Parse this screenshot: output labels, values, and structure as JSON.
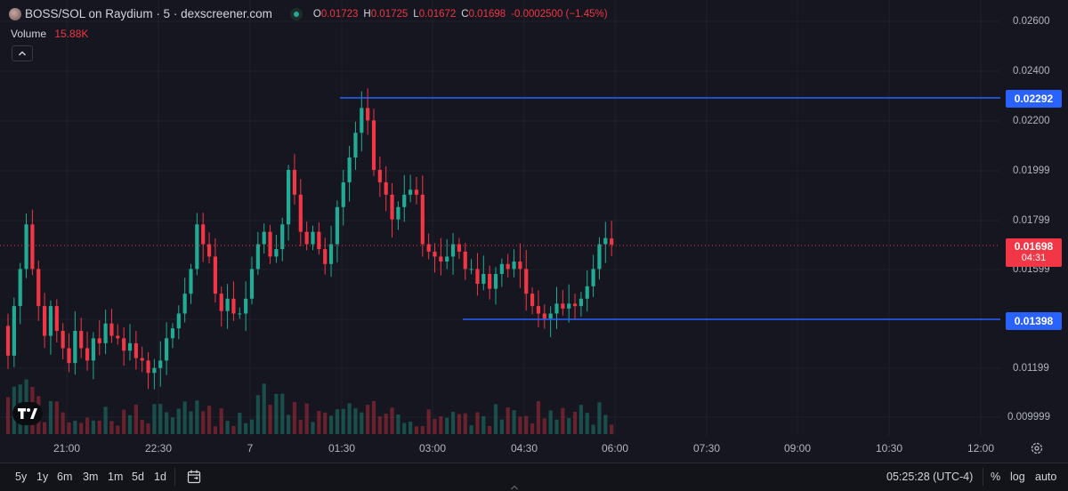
{
  "legend": {
    "title": "BOSS/SOL on Raydium · 5 · dexscreener.com",
    "open_label": "O",
    "open": "0.01723",
    "high_label": "H",
    "high": "0.01725",
    "low_label": "L",
    "low": "0.01672",
    "close_label": "C",
    "close": "0.01698",
    "change": "-0.0002500 (−1.45%)",
    "volume_label": "Volume",
    "volume_value": "15.88K",
    "status_color": "#22ab94"
  },
  "price_axis": {
    "labels": [
      "0.02600",
      "0.02400",
      "0.02200",
      "0.01999",
      "0.01799",
      "0.01599",
      "0.01199",
      "0.009999"
    ]
  },
  "horizontal_lines": {
    "upper": "0.02292",
    "lower": "0.01398",
    "line_color": "#2962ff"
  },
  "current_price": {
    "price": "0.01698",
    "countdown": "04:31",
    "color": "#f23645"
  },
  "time_axis": {
    "labels": [
      "21:00",
      "22:30",
      "7",
      "01:30",
      "03:00",
      "04:30",
      "06:00",
      "07:30",
      "09:00",
      "10:30",
      "12:00"
    ]
  },
  "bottom_bar": {
    "ranges": [
      "5y",
      "1y",
      "6m",
      "3m",
      "1m",
      "5d",
      "1d"
    ],
    "clock": "05:25:28 (UTC-4)",
    "percent": "%",
    "log": "log",
    "auto": "auto"
  },
  "colors": {
    "up": "#22ab94",
    "down": "#f23645",
    "background": "#15161f"
  },
  "chart_data": {
    "type": "candlestick",
    "series_volume_name": "Volume",
    "closes": [
      0.0125,
      0.0145,
      0.016,
      0.0178,
      0.016,
      0.0145,
      0.0133,
      0.0145,
      0.0135,
      0.0128,
      0.0122,
      0.0135,
      0.0128,
      0.0123,
      0.0132,
      0.013,
      0.0138,
      0.0133,
      0.0132,
      0.0127,
      0.013,
      0.0124,
      0.0123,
      0.0118,
      0.012,
      0.0123,
      0.0132,
      0.0136,
      0.0142,
      0.015,
      0.016,
      0.0178,
      0.017,
      0.0165,
      0.015,
      0.0143,
      0.0148,
      0.0142,
      0.0142,
      0.0148,
      0.016,
      0.017,
      0.0175,
      0.0165,
      0.0168,
      0.0178,
      0.02,
      0.019,
      0.0175,
      0.017,
      0.0175,
      0.0168,
      0.0162,
      0.017,
      0.0185,
      0.0195,
      0.0205,
      0.0215,
      0.0225,
      0.022,
      0.02,
      0.0195,
      0.019,
      0.018,
      0.0185,
      0.019,
      0.0192,
      0.019,
      0.017,
      0.0167,
      0.0165,
      0.0163,
      0.0165,
      0.017,
      0.0167,
      0.016,
      0.016,
      0.0154,
      0.0158,
      0.0152,
      0.0158,
      0.0162,
      0.016,
      0.0163,
      0.016,
      0.015,
      0.0145,
      0.0142,
      0.014,
      0.0142,
      0.0146,
      0.0144,
      0.0146,
      0.0145,
      0.0148,
      0.0153,
      0.016,
      0.017,
      0.01725,
      0.01698
    ],
    "opens_note": "",
    "ylim": [
      0.0094,
      0.0268
    ]
  }
}
